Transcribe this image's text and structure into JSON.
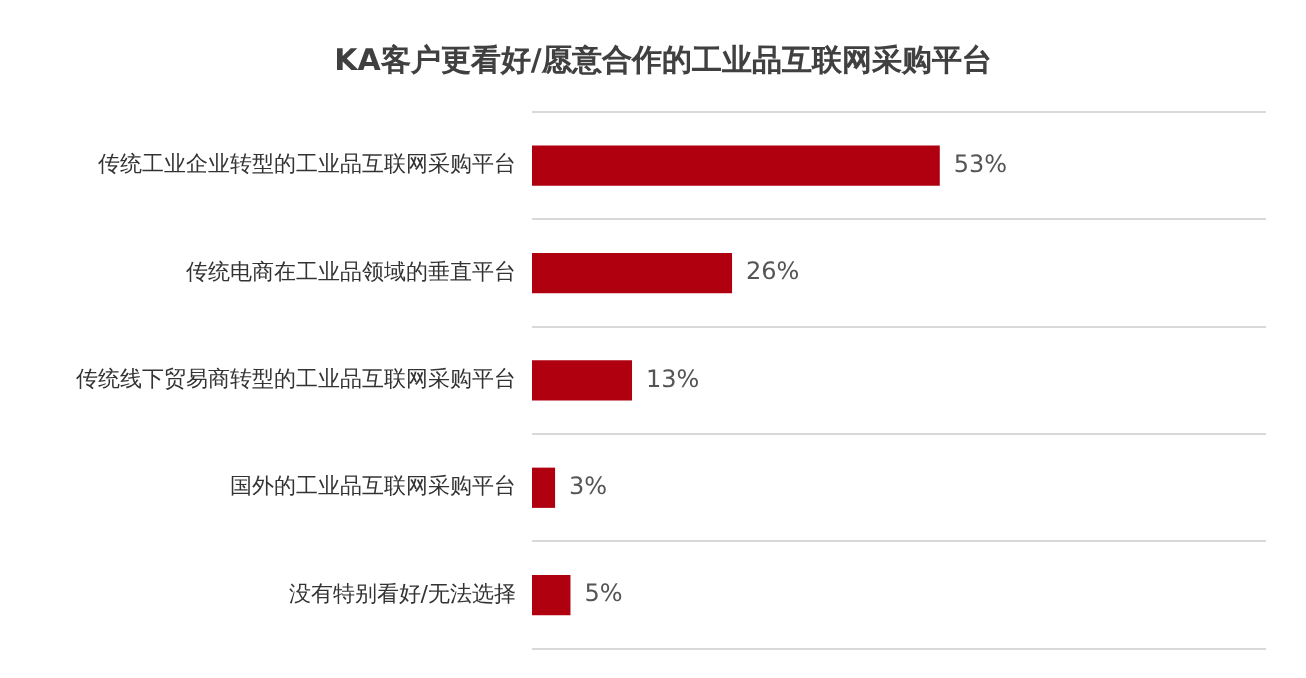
{
  "chart_data": {
    "type": "bar",
    "orientation": "horizontal",
    "title": "KA客户更看好/愿意合作的工业品互联网采购平台",
    "categories": [
      "传统工业企业转型的工业品互联网采购平台",
      "传统电商在工业品领域的垂直平台",
      "传统线下贸易商转型的工业品互联网采购平台",
      "国外的工业品互联网采购平台",
      "没有特别看好/无法选择"
    ],
    "values": [
      53,
      26,
      13,
      3,
      5
    ],
    "value_labels": [
      "53%",
      "26%",
      "13%",
      "3%",
      "5%"
    ],
    "color": "#b00010",
    "grid": "y",
    "tick_labels": "y"
  }
}
